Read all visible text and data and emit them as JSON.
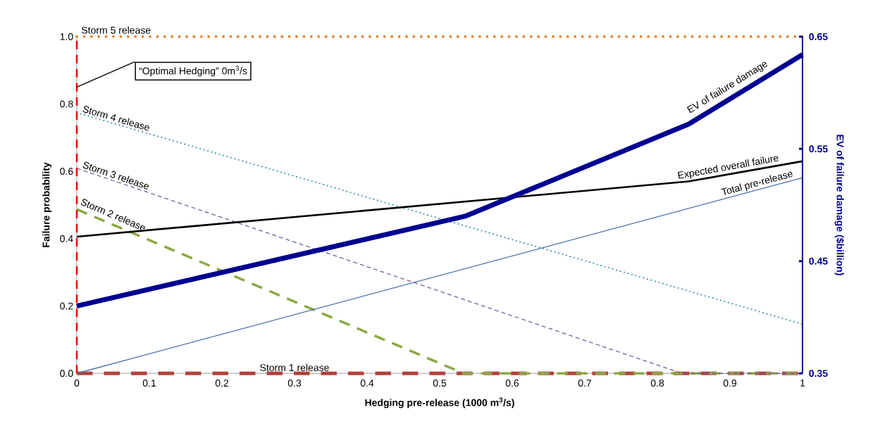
{
  "chart_data": {
    "type": "line",
    "xlabel": "Hedging pre-release (1000 m$^{3}$/s)",
    "ylabel": "Failure probability",
    "y2label": "EV of failure damage ($billion)",
    "xlim": [
      0,
      1
    ],
    "xticks": [
      0,
      0.1,
      0.2,
      0.3,
      0.4,
      0.5,
      0.6,
      0.7,
      0.8,
      0.9,
      1
    ],
    "ylim": [
      0,
      1
    ],
    "yticks": [
      {
        "value": 0,
        "label": "0.0"
      },
      0.2,
      0.4,
      0.6,
      0.8,
      {
        "value": 1,
        "label": "1.0"
      }
    ],
    "y2lim": [
      0.35,
      0.65
    ],
    "y2ticks": [
      0.35,
      0.45,
      0.55,
      0.65
    ],
    "grid": false,
    "marker": "none",
    "series": [
      {
        "name": "Storm 1 release",
        "color": "#b0403c",
        "line_style": "dashed",
        "x": [
          0,
          1
        ],
        "values": [
          0,
          0
        ]
      },
      {
        "name": "Storm 2 release",
        "color": "#8aaa44",
        "line_style": "dashed",
        "x": [
          0,
          0.533,
          1
        ],
        "values": [
          0.487,
          0,
          0
        ]
      },
      {
        "name": "Storm 3 release",
        "color": "#7a5ca0",
        "line_style": "dashed",
        "x": [
          0,
          0.834,
          1
        ],
        "values": [
          0.609,
          0,
          0
        ]
      },
      {
        "name": "Storm 4 release",
        "color": "#3399b3",
        "line_style": "dotted",
        "x": [
          0,
          1
        ],
        "values": [
          0.774,
          0.146
        ]
      },
      {
        "name": "Storm 5 release",
        "color": "#e08a3c",
        "line_style": "dotted",
        "x": [
          0,
          1
        ],
        "values": [
          1,
          1
        ]
      },
      {
        "name": "Total pre-release",
        "color": "#4472a8",
        "line_style": "solid",
        "x": [
          0,
          1
        ],
        "values": [
          0,
          0.581
        ]
      },
      {
        "name": "Expected overall failure",
        "color": "#000000",
        "line_style": "solid",
        "x": [
          0,
          0.843,
          1
        ],
        "values": [
          0.406,
          0.57,
          0.63
        ]
      },
      {
        "name": "EV of failure damage",
        "color": "#000090",
        "line_style": "solid",
        "axis": "y2",
        "x": [
          0,
          0.535,
          0.843,
          1
        ],
        "values": [
          0.41,
          0.49,
          0.572,
          0.634
        ]
      }
    ],
    "ref_lines": [
      {
        "axis": "x",
        "value": 0,
        "label": "“Optimal Hedging” 0m$^{3}$/s",
        "color": "#ff0000",
        "line_style": "dashed"
      }
    ]
  }
}
